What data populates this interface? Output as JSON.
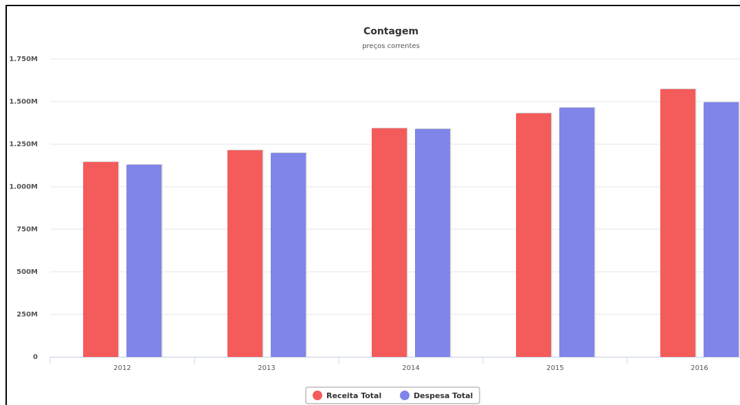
{
  "chart_data": {
    "type": "bar",
    "title": "Contagem",
    "subtitle": "preços correntes",
    "categories": [
      "2012",
      "2013",
      "2014",
      "2015",
      "2016"
    ],
    "series": [
      {
        "name": "Receita Total",
        "color": "#f45b5b",
        "values": [
          1145000000,
          1214000000,
          1343000000,
          1431000000,
          1573000000
        ]
      },
      {
        "name": "Despesa Total",
        "color": "#8085e9",
        "values": [
          1129000000,
          1198000000,
          1339000000,
          1464000000,
          1496000000
        ]
      }
    ],
    "ylim": [
      0,
      1750000000
    ],
    "yticks": [
      0,
      {
        "value": 250000000,
        "label": "250M"
      },
      {
        "value": 500000000,
        "label": "500M"
      },
      {
        "value": 750000000,
        "label": "750M"
      },
      {
        "value": 1000000000,
        "label": "1.000M"
      },
      {
        "value": 1250000000,
        "label": "1.250M"
      },
      {
        "value": 1500000000,
        "label": "1.500M"
      },
      {
        "value": 1750000000,
        "label": "1.750M"
      }
    ],
    "grid": true,
    "legend": "bottom"
  }
}
